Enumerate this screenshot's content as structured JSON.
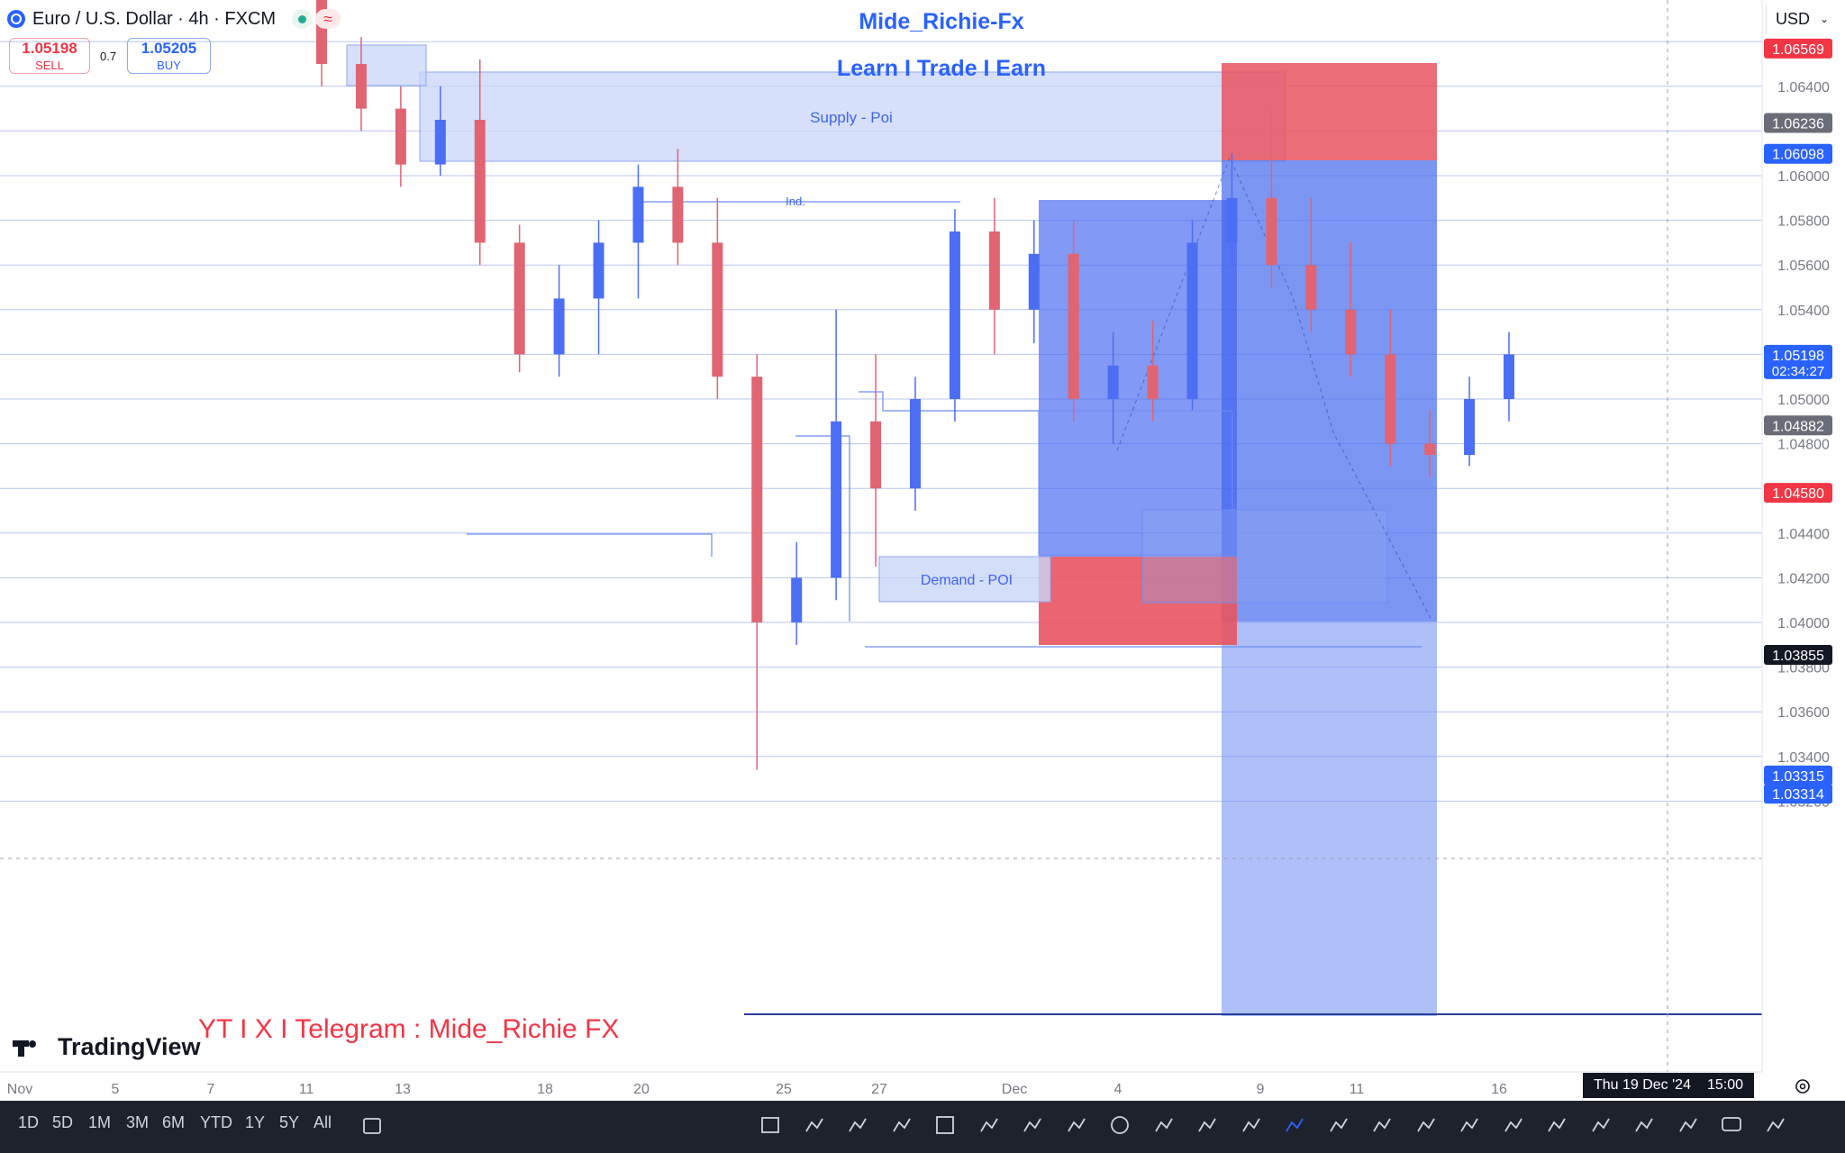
{
  "header": {
    "symbol": "Euro / U.S. Dollar · 4h · FXCM",
    "sell_price": "1.05198",
    "sell_label": "SELL",
    "buy_price": "1.05205",
    "buy_label": "BUY",
    "spread": "0.7",
    "currency": "USD"
  },
  "overlay": {
    "title": "Mide_Richie-Fx",
    "subtitle": "Learn I Trade I Earn",
    "socials": "YT I X I Telegram : Mide_Richie FX",
    "logo": "TradingView"
  },
  "annotations": {
    "supply": "Supply - Poi",
    "ind": "Ind.",
    "demand": "Demand - POI"
  },
  "price_axis": {
    "ticks": [
      "1.06400",
      "1.06000",
      "1.05800",
      "1.05600",
      "1.05400",
      "1.05000",
      "1.04800",
      "1.04400",
      "1.04200",
      "1.04000",
      "1.03800",
      "1.03600",
      "1.03400",
      "1.03200"
    ],
    "labels": [
      {
        "text": "1.06569",
        "kind": "red"
      },
      {
        "text": "1.06236",
        "kind": "gray"
      },
      {
        "text": "1.06098",
        "kind": "blue"
      },
      {
        "text": "1.05198",
        "sub": "02:34:27",
        "kind": "blue"
      },
      {
        "text": "1.04882",
        "kind": "gray"
      },
      {
        "text": "1.04580",
        "kind": "red"
      },
      {
        "text": "1.03855",
        "kind": "black"
      },
      {
        "text": "1.03315",
        "kind": "blue"
      },
      {
        "text": "1.03314",
        "kind": "blue"
      }
    ]
  },
  "time_axis": {
    "ticks": [
      "Nov",
      "5",
      "7",
      "11",
      "13",
      "18",
      "20",
      "25",
      "27",
      "Dec",
      "4",
      "9",
      "11",
      "16"
    ],
    "cursor_date": "Thu 19 Dec '24",
    "cursor_time": "15:00"
  },
  "toolbar": {
    "timeframes": [
      "1D",
      "5D",
      "1M",
      "3M",
      "6M",
      "YTD",
      "1Y",
      "5Y",
      "All"
    ],
    "tools": [
      "calendar-icon",
      "rectangle-icon",
      "path-icon",
      "brush-icon",
      "trend-angle-icon",
      "grid-icon",
      "lines-icon",
      "candles-icon",
      "line-icon",
      "circle-icon",
      "pin-icon",
      "text-icon",
      "horizontal-line-icon",
      "crosshair-icon",
      "curve-icon",
      "polygon-icon",
      "fib-icon",
      "pencil-icon",
      "vertical-line-icon",
      "s-curve-icon",
      "channel-icon",
      "x-icon",
      "cross-line-icon",
      "comment-icon",
      "text-size-icon"
    ]
  },
  "colors": {
    "up": "#4c6ef5",
    "down": "#e06472",
    "grid": "#b9c6f2",
    "zone_blue": "#c8d6f8",
    "position_blue": "#3f63f0",
    "position_red": "#e8545f"
  },
  "chart_data": {
    "type": "candlestick",
    "title": "Euro / U.S. Dollar · 4h · FXCM",
    "ylim": [
      1.032,
      1.0668
    ],
    "candles": [
      {
        "t": "Nov 8",
        "o": 1.069,
        "h": 1.072,
        "l": 1.064,
        "c": 1.065
      },
      {
        "t": "Nov 11",
        "o": 1.065,
        "h": 1.0662,
        "l": 1.062,
        "c": 1.063
      },
      {
        "t": "Nov 12",
        "o": 1.063,
        "h": 1.064,
        "l": 1.0595,
        "c": 1.0605
      },
      {
        "t": "Nov 13",
        "o": 1.0605,
        "h": 1.064,
        "l": 1.06,
        "c": 1.0625
      },
      {
        "t": "Nov 13",
        "o": 1.0625,
        "h": 1.0652,
        "l": 1.056,
        "c": 1.057
      },
      {
        "t": "Nov 14",
        "o": 1.057,
        "h": 1.0578,
        "l": 1.0512,
        "c": 1.052
      },
      {
        "t": "Nov 15",
        "o": 1.052,
        "h": 1.056,
        "l": 1.051,
        "c": 1.0545
      },
      {
        "t": "Nov 18",
        "o": 1.0545,
        "h": 1.058,
        "l": 1.052,
        "c": 1.057
      },
      {
        "t": "Nov 19",
        "o": 1.057,
        "h": 1.0605,
        "l": 1.0545,
        "c": 1.0595
      },
      {
        "t": "Nov 20",
        "o": 1.0595,
        "h": 1.0612,
        "l": 1.056,
        "c": 1.057
      },
      {
        "t": "Nov 21",
        "o": 1.057,
        "h": 1.059,
        "l": 1.05,
        "c": 1.051
      },
      {
        "t": "Nov 22",
        "o": 1.051,
        "h": 1.052,
        "l": 1.0334,
        "c": 1.04
      },
      {
        "t": "Nov 22",
        "o": 1.04,
        "h": 1.0436,
        "l": 1.039,
        "c": 1.042
      },
      {
        "t": "Nov 25",
        "o": 1.042,
        "h": 1.054,
        "l": 1.041,
        "c": 1.049
      },
      {
        "t": "Nov 26",
        "o": 1.049,
        "h": 1.052,
        "l": 1.0425,
        "c": 1.046
      },
      {
        "t": "Nov 27",
        "o": 1.046,
        "h": 1.051,
        "l": 1.045,
        "c": 1.05
      },
      {
        "t": "Nov 28",
        "o": 1.05,
        "h": 1.0585,
        "l": 1.049,
        "c": 1.0575
      },
      {
        "t": "Nov 29",
        "o": 1.0575,
        "h": 1.059,
        "l": 1.052,
        "c": 1.054
      },
      {
        "t": "Dec 2",
        "o": 1.054,
        "h": 1.058,
        "l": 1.0525,
        "c": 1.0565
      },
      {
        "t": "Dec 2",
        "o": 1.0565,
        "h": 1.058,
        "l": 1.049,
        "c": 1.05
      },
      {
        "t": "Dec 3",
        "o": 1.05,
        "h": 1.053,
        "l": 1.048,
        "c": 1.0515
      },
      {
        "t": "Dec 4",
        "o": 1.0515,
        "h": 1.0535,
        "l": 1.049,
        "c": 1.05
      },
      {
        "t": "Dec 5",
        "o": 1.05,
        "h": 1.058,
        "l": 1.0495,
        "c": 1.057
      },
      {
        "t": "Dec 6",
        "o": 1.057,
        "h": 1.061,
        "l": 1.056,
        "c": 1.059
      },
      {
        "t": "Dec 9",
        "o": 1.059,
        "h": 1.063,
        "l": 1.055,
        "c": 1.056
      },
      {
        "t": "Dec 10",
        "o": 1.056,
        "h": 1.059,
        "l": 1.053,
        "c": 1.054
      },
      {
        "t": "Dec 11",
        "o": 1.054,
        "h": 1.057,
        "l": 1.051,
        "c": 1.052
      },
      {
        "t": "Dec 12",
        "o": 1.052,
        "h": 1.054,
        "l": 1.047,
        "c": 1.048
      },
      {
        "t": "Dec 13",
        "o": 1.048,
        "h": 1.0495,
        "l": 1.0465,
        "c": 1.0475
      },
      {
        "t": "Dec 16",
        "o": 1.0475,
        "h": 1.051,
        "l": 1.047,
        "c": 1.05
      },
      {
        "t": "Dec 17",
        "o": 1.05,
        "h": 1.053,
        "l": 1.049,
        "c": 1.052
      }
    ],
    "levels": [
      1.06569,
      1.06236,
      1.06098,
      1.05198,
      1.04882,
      1.0458,
      1.03855,
      1.03315,
      1.03314
    ]
  }
}
